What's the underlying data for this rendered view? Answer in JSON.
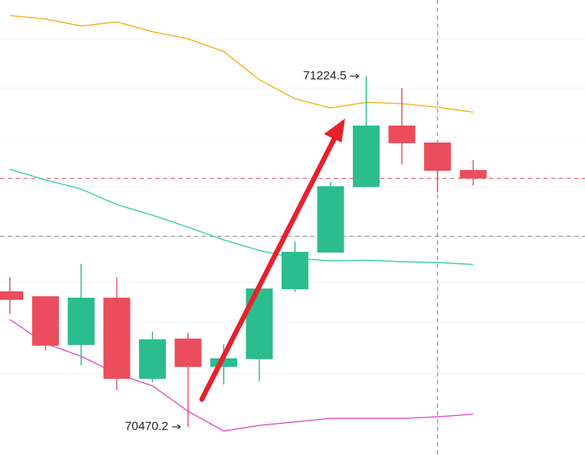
{
  "chart_data": {
    "type": "candlestick",
    "ylim": [
      70409.5,
      71388.4
    ],
    "up_color": "#2bbd8e",
    "down_color": "#eb4d5c",
    "open": [
      70761.6,
      70751.0,
      70646.3,
      70747.9,
      70573.4,
      70659.9,
      70599.2,
      70615.9,
      70766.2,
      70845.1,
      70986.2,
      71118.3,
      71081.8,
      71022.6
    ],
    "close": [
      70743.4,
      70644.7,
      70747.9,
      70573.4,
      70658.4,
      70599.2,
      70617.4,
      70767.7,
      70846.6,
      70987.7,
      71118.3,
      71080.3,
      71021.1,
      71004.4
    ],
    "high": [
      70792.0,
      70751.0,
      70820.8,
      70792.0,
      70675.1,
      70672.1,
      70647.8,
      70767.7,
      70869.4,
      70996.8,
      71224.5,
      71198.7,
      71081.8,
      71043.9
    ],
    "low": [
      70713.0,
      70634.1,
      70602.2,
      70549.1,
      70565.8,
      70470.2,
      70561.3,
      70567.3,
      70760.1,
      70845.1,
      70986.2,
      71034.8,
      70974.1,
      70989.3
    ],
    "lines": [
      {
        "color": "#f0b41c",
        "values": [
          71355.0,
          71347.4,
          71332.3,
          71341.4,
          71320.1,
          71304.9,
          71277.6,
          71216.9,
          71175.9,
          71156.2,
          71168.3,
          71165.3,
          71157.7,
          71147.1
        ]
      },
      {
        "color": "#3ccfb0",
        "values": [
          71024.2,
          71001.4,
          70981.7,
          70948.3,
          70925.5,
          70899.7,
          70872.4,
          70849.6,
          70832.9,
          70826.9,
          70828.4,
          70825.3,
          70823.8,
          70819.3
        ]
      },
      {
        "color": "#e255c4",
        "values": [
          70700.9,
          70649.3,
          70622.0,
          70584.0,
          70558.2,
          70503.6,
          70461.1,
          70473.2,
          70480.8,
          70488.4,
          70488.4,
          70488.4,
          70491.5,
          70497.5
        ]
      }
    ],
    "hlines": [
      {
        "value": 71004.4,
        "color": "#e0505e"
      },
      {
        "value": 70880.0,
        "color": "#8a8a8a"
      }
    ],
    "crosshair_index": 12,
    "high_marker_index": 10,
    "low_marker_index": 5
  }
}
